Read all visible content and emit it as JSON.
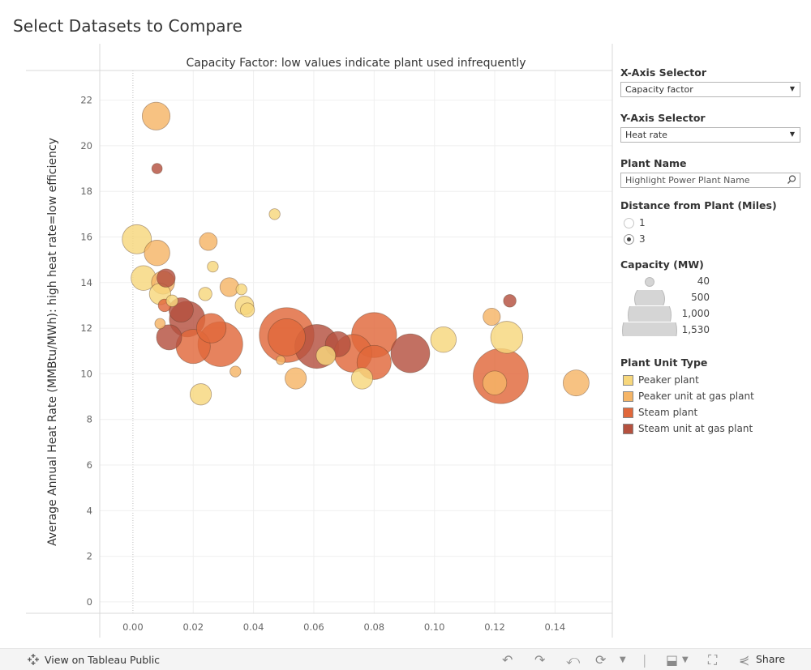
{
  "dashboard": {
    "title": "Select Datasets to Compare"
  },
  "chart_data": {
    "type": "scatter",
    "title": "Capacity Factor: low values indicate plant used infrequently",
    "xlabel": "",
    "ylabel": "Average Annual Heat Rate (MMBtu/MWh): high heat rate=low efficiency",
    "xlim": [
      -0.011,
      0.159
    ],
    "ylim": [
      -0.5,
      23.3
    ],
    "x_ticks": [
      "0.00",
      "0.02",
      "0.04",
      "0.06",
      "0.08",
      "0.10",
      "0.12",
      "0.14"
    ],
    "x_tick_values": [
      0,
      0.02,
      0.04,
      0.06,
      0.08,
      0.1,
      0.12,
      0.14
    ],
    "y_ticks": [
      "0",
      "2",
      "4",
      "6",
      "8",
      "10",
      "12",
      "14",
      "16",
      "18",
      "20",
      "22"
    ],
    "y_tick_values": [
      0,
      2,
      4,
      6,
      8,
      10,
      12,
      14,
      16,
      18,
      20,
      22
    ],
    "grid": true,
    "size_measure": "Capacity (MW)",
    "color_measure": "Plant Unit Type",
    "colors": {
      "Peaker plant": "#f7d77c",
      "Peaker unit at gas plant": "#f5b567",
      "Steam plant": "#e1683b",
      "Steam unit at gas plant": "#b5513f"
    },
    "points": [
      {
        "x": 0.0077,
        "y": 21.3,
        "cap": 390,
        "type": "Peaker unit at gas plant"
      },
      {
        "x": 0.008,
        "y": 19.0,
        "cap": 55,
        "type": "Steam unit at gas plant"
      },
      {
        "x": 0.047,
        "y": 17.0,
        "cap": 60,
        "type": "Peaker plant"
      },
      {
        "x": 0.0013,
        "y": 15.9,
        "cap": 430,
        "type": "Peaker plant"
      },
      {
        "x": 0.008,
        "y": 15.3,
        "cap": 330,
        "type": "Peaker unit at gas plant"
      },
      {
        "x": 0.025,
        "y": 15.8,
        "cap": 160,
        "type": "Peaker unit at gas plant"
      },
      {
        "x": 0.0265,
        "y": 14.7,
        "cap": 60,
        "type": "Peaker plant"
      },
      {
        "x": 0.011,
        "y": 14.2,
        "cap": 170,
        "type": "Steam unit at gas plant"
      },
      {
        "x": 0.0035,
        "y": 14.2,
        "cap": 310,
        "type": "Peaker plant"
      },
      {
        "x": 0.01,
        "y": 14.0,
        "cap": 270,
        "type": "Peaker unit at gas plant"
      },
      {
        "x": 0.009,
        "y": 13.5,
        "cap": 230,
        "type": "Peaker plant"
      },
      {
        "x": 0.032,
        "y": 13.8,
        "cap": 180,
        "type": "Peaker unit at gas plant"
      },
      {
        "x": 0.036,
        "y": 13.7,
        "cap": 60,
        "type": "Peaker plant"
      },
      {
        "x": 0.024,
        "y": 13.5,
        "cap": 90,
        "type": "Peaker plant"
      },
      {
        "x": 0.037,
        "y": 13.0,
        "cap": 175,
        "type": "Peaker plant"
      },
      {
        "x": 0.038,
        "y": 12.8,
        "cap": 100,
        "type": "Peaker plant"
      },
      {
        "x": 0.013,
        "y": 13.2,
        "cap": 70,
        "type": "Peaker plant"
      },
      {
        "x": 0.0105,
        "y": 13.0,
        "cap": 80,
        "type": "Steam plant"
      },
      {
        "x": 0.016,
        "y": 12.8,
        "cap": 300,
        "type": "Steam unit at gas plant"
      },
      {
        "x": 0.018,
        "y": 12.4,
        "cap": 640,
        "type": "Steam unit at gas plant"
      },
      {
        "x": 0.026,
        "y": 12.0,
        "cap": 440,
        "type": "Steam plant"
      },
      {
        "x": 0.009,
        "y": 12.2,
        "cap": 55,
        "type": "Peaker unit at gas plant"
      },
      {
        "x": 0.012,
        "y": 11.6,
        "cap": 320,
        "type": "Steam unit at gas plant"
      },
      {
        "x": 0.02,
        "y": 11.2,
        "cap": 590,
        "type": "Steam plant"
      },
      {
        "x": 0.029,
        "y": 11.3,
        "cap": 1010,
        "type": "Steam plant"
      },
      {
        "x": 0.034,
        "y": 10.1,
        "cap": 60,
        "type": "Peaker unit at gas plant"
      },
      {
        "x": 0.0225,
        "y": 9.1,
        "cap": 230,
        "type": "Peaker plant"
      },
      {
        "x": 0.051,
        "y": 11.7,
        "cap": 1510,
        "type": "Steam plant"
      },
      {
        "x": 0.051,
        "y": 11.6,
        "cap": 700,
        "type": "Steam plant"
      },
      {
        "x": 0.049,
        "y": 10.6,
        "cap": 40,
        "type": "Peaker unit at gas plant"
      },
      {
        "x": 0.054,
        "y": 9.8,
        "cap": 230,
        "type": "Peaker unit at gas plant"
      },
      {
        "x": 0.061,
        "y": 11.2,
        "cap": 970,
        "type": "Steam unit at gas plant"
      },
      {
        "x": 0.068,
        "y": 11.3,
        "cap": 320,
        "type": "Steam unit at gas plant"
      },
      {
        "x": 0.064,
        "y": 10.8,
        "cap": 190,
        "type": "Peaker plant"
      },
      {
        "x": 0.073,
        "y": 10.9,
        "cap": 720,
        "type": "Steam plant"
      },
      {
        "x": 0.08,
        "y": 11.7,
        "cap": 1020,
        "type": "Steam plant"
      },
      {
        "x": 0.08,
        "y": 10.5,
        "cap": 590,
        "type": "Steam plant"
      },
      {
        "x": 0.076,
        "y": 9.8,
        "cap": 230,
        "type": "Peaker plant"
      },
      {
        "x": 0.092,
        "y": 10.9,
        "cap": 760,
        "type": "Steam unit at gas plant"
      },
      {
        "x": 0.103,
        "y": 11.5,
        "cap": 330,
        "type": "Peaker plant"
      },
      {
        "x": 0.119,
        "y": 12.5,
        "cap": 150,
        "type": "Peaker unit at gas plant"
      },
      {
        "x": 0.125,
        "y": 13.2,
        "cap": 80,
        "type": "Steam unit at gas plant"
      },
      {
        "x": 0.124,
        "y": 11.6,
        "cap": 520,
        "type": "Peaker plant"
      },
      {
        "x": 0.122,
        "y": 9.9,
        "cap": 1530,
        "type": "Steam plant"
      },
      {
        "x": 0.12,
        "y": 9.6,
        "cap": 290,
        "type": "Peaker unit at gas plant"
      },
      {
        "x": 0.147,
        "y": 9.6,
        "cap": 340,
        "type": "Peaker unit at gas plant"
      }
    ]
  },
  "controls": {
    "x_axis": {
      "title": "X-Axis Selector",
      "value": "Capacity factor"
    },
    "y_axis": {
      "title": "Y-Axis Selector",
      "value": "Heat rate"
    },
    "plant_name": {
      "title": "Plant Name",
      "placeholder": "Highlight Power Plant Name"
    },
    "distance": {
      "title": "Distance from Plant (Miles)",
      "options": [
        "1",
        "3"
      ],
      "selected": "3"
    },
    "capacity_legend": {
      "title": "Capacity (MW)",
      "labels": [
        "40",
        "500",
        "1,000",
        "1,530"
      ]
    },
    "type_legend": {
      "title": "Plant Unit Type",
      "items": [
        {
          "label": "Peaker plant",
          "color": "#f7d77c"
        },
        {
          "label": "Peaker unit at gas plant",
          "color": "#f5b567"
        },
        {
          "label": "Steam plant",
          "color": "#e1683b"
        },
        {
          "label": "Steam unit at gas plant",
          "color": "#b5513f"
        }
      ]
    }
  },
  "footer": {
    "view_label": "View on Tableau Public",
    "share_label": "Share",
    "icons": [
      "undo-icon",
      "redo-icon",
      "revert-icon",
      "refresh-icon",
      "download-icon",
      "fullscreen-icon",
      "share-icon"
    ]
  }
}
